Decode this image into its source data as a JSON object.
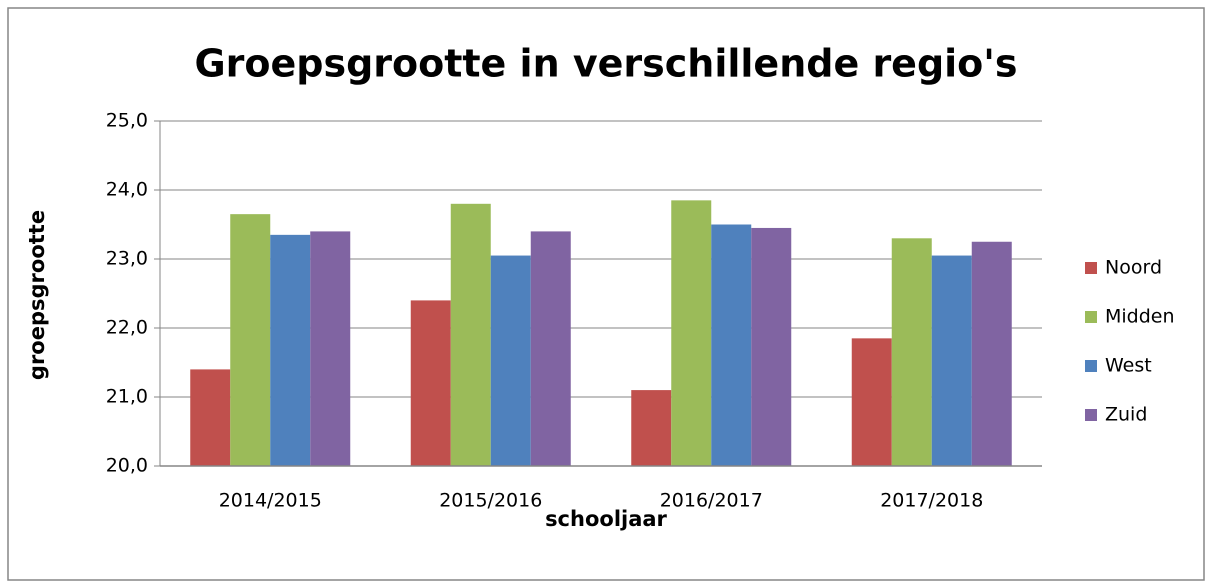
{
  "chart_data": {
    "type": "bar",
    "title": "Groepsgrootte in verschillende regio's",
    "x_label": "schooljaar",
    "y_label": "groepsgrootte",
    "categories": [
      "2014/2015",
      "2015/2016",
      "2016/2017",
      "2017/2018"
    ],
    "series": [
      {
        "name": "Noord",
        "color": "#c0504d",
        "values": [
          21.4,
          22.4,
          21.1,
          21.85
        ]
      },
      {
        "name": "Midden",
        "color": "#9bbb59",
        "values": [
          23.65,
          23.8,
          23.85,
          23.3
        ]
      },
      {
        "name": "West",
        "color": "#4f81bd",
        "values": [
          23.35,
          23.05,
          23.5,
          23.05
        ]
      },
      {
        "name": "Zuid",
        "color": "#8064a2",
        "values": [
          23.4,
          23.4,
          23.45,
          23.25
        ]
      }
    ],
    "ylim": [
      20,
      25
    ],
    "yticks": [
      {
        "value": 20,
        "label": "20,0"
      },
      {
        "value": 21,
        "label": "21,0"
      },
      {
        "value": 22,
        "label": "22,0"
      },
      {
        "value": 23,
        "label": "23,0"
      },
      {
        "value": 24,
        "label": "24,0"
      },
      {
        "value": 25,
        "label": "25,0"
      }
    ],
    "grid": true,
    "legend": "right"
  }
}
